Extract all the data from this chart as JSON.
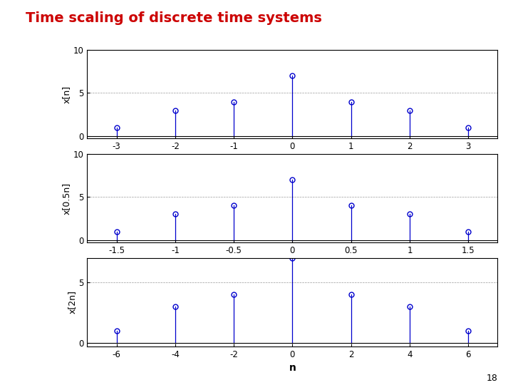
{
  "title": "Time scaling of discrete time systems",
  "title_color": "#cc0000",
  "title_fontsize": 14,
  "title_fontweight": "bold",
  "background_color": "#ffffff",
  "stem_color": "#0000cd",
  "marker_color": "none",
  "marker_edge_color": "#0000cd",
  "marker_size": 5,
  "subplot1": {
    "ylabel": "x[n]",
    "n": [
      -3,
      -2,
      -1,
      0,
      1,
      2,
      3
    ],
    "values": [
      1,
      3,
      4,
      7,
      4,
      3,
      1
    ],
    "xticks": [
      -3,
      -2,
      -1,
      0,
      1,
      2,
      3
    ],
    "yticks": [
      0,
      5,
      10
    ],
    "ylim": [
      -0.3,
      10
    ],
    "xlim": [
      -3.5,
      3.5
    ]
  },
  "subplot2": {
    "ylabel": "x[0.5n]",
    "n": [
      -1.5,
      -1.0,
      -0.5,
      0,
      0.5,
      1.0,
      1.5
    ],
    "values": [
      1,
      3,
      4,
      7,
      4,
      3,
      1
    ],
    "xticks": [
      -1.5,
      -1,
      -0.5,
      0,
      0.5,
      1,
      1.5
    ],
    "xtick_labels": [
      "-1.5",
      "-1",
      "-0.5",
      "0",
      "0.5",
      "1",
      "1.5"
    ],
    "yticks": [
      0,
      5,
      10
    ],
    "ylim": [
      -0.3,
      10
    ],
    "xlim": [
      -1.75,
      1.75
    ]
  },
  "subplot3": {
    "ylabel": "x[2n]",
    "n": [
      -6,
      -4,
      -2,
      0,
      2,
      4,
      6
    ],
    "values": [
      1,
      3,
      4,
      7,
      4,
      3,
      1
    ],
    "xticks": [
      -6,
      -4,
      -2,
      0,
      2,
      4,
      6
    ],
    "yticks": [
      0,
      5
    ],
    "ylim": [
      -0.3,
      7
    ],
    "xlim": [
      -7,
      7
    ],
    "xlabel": "n"
  },
  "page_number": "18"
}
